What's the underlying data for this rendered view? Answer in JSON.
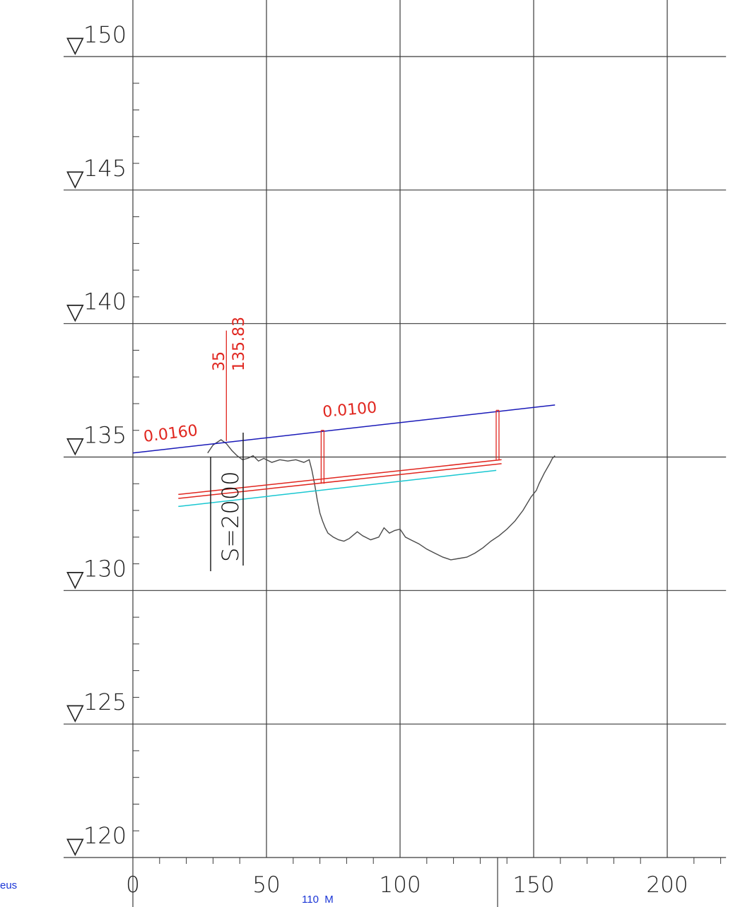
{
  "y_axis": {
    "levels": [
      150,
      145,
      140,
      135,
      130,
      125,
      120
    ],
    "labels": [
      "150",
      "145",
      "140",
      "135",
      "130",
      "125",
      "120"
    ],
    "marker_symbol": "▽",
    "range": [
      118.5,
      151.5
    ]
  },
  "x_axis": {
    "ticks": [
      0,
      50,
      100,
      150,
      200
    ],
    "labels": [
      "0",
      "50",
      "100",
      "150",
      "200"
    ],
    "range": [
      0,
      222
    ],
    "distance_note": "110  M"
  },
  "annotations": {
    "slope_left": "0.0160",
    "slope_right": "0.0100",
    "station_distance": "35",
    "station_elevation": "135.83",
    "scale": "S=2000",
    "left_fragment": "eus"
  },
  "colors": {
    "grid": "#3b3b3b",
    "ground": "#4a4a4a",
    "water_surface": "#1a1ab8",
    "structure": "#e0261f",
    "bed": "#19c7d1",
    "label_blue": "#1a35d6"
  },
  "chart_data": {
    "type": "line",
    "xlabel": "",
    "ylabel": "",
    "xlim": [
      0,
      222
    ],
    "ylim": [
      118.5,
      151.5
    ],
    "grid": true,
    "series": [
      {
        "key": "ground",
        "x": [
          28,
          30,
          33,
          35,
          37,
          39,
          41,
          43,
          45,
          47,
          49,
          52,
          55,
          58,
          61,
          64,
          66,
          67,
          68,
          69,
          70,
          71,
          72,
          73,
          75,
          77,
          79,
          81,
          84,
          86,
          89,
          92,
          94,
          96,
          98,
          100,
          102,
          104,
          107,
          110,
          113,
          116,
          119,
          122,
          125,
          128,
          131,
          134,
          137,
          140,
          143,
          146,
          149,
          151,
          152,
          154,
          156,
          157,
          158
        ],
        "y": [
          135.15,
          135.45,
          135.65,
          135.5,
          135.25,
          135.05,
          134.9,
          134.95,
          135.05,
          134.85,
          134.95,
          134.8,
          134.9,
          134.85,
          134.9,
          134.8,
          134.9,
          134.5,
          134.0,
          133.4,
          132.9,
          132.6,
          132.35,
          132.15,
          132.0,
          131.9,
          131.85,
          131.95,
          132.2,
          132.05,
          131.9,
          132.0,
          132.35,
          132.15,
          132.25,
          132.3,
          132.0,
          131.9,
          131.75,
          131.55,
          131.4,
          131.25,
          131.15,
          131.2,
          131.25,
          131.4,
          131.6,
          131.85,
          132.05,
          132.3,
          132.6,
          133.0,
          133.5,
          133.75,
          134.0,
          134.4,
          134.75,
          134.95,
          135.05
        ]
      },
      {
        "key": "water_surface",
        "x": [
          0,
          158
        ],
        "y": [
          135.15,
          136.95
        ]
      },
      {
        "key": "structure_top",
        "x": [
          17,
          138
        ],
        "y": [
          133.6,
          134.9
        ]
      },
      {
        "key": "structure_bottom",
        "x": [
          17,
          138
        ],
        "y": [
          133.45,
          134.75
        ]
      },
      {
        "key": "bed",
        "x": [
          17,
          136
        ],
        "y": [
          133.15,
          134.5
        ]
      }
    ],
    "verticals": [
      {
        "x": 35,
        "y_from": 135.6,
        "y_to": 140
      },
      {
        "x": 71,
        "y_from": 134.0,
        "y_to": 136.0
      },
      {
        "x": 136.5,
        "y_from": 134.9,
        "y_to": 136.75
      }
    ]
  }
}
